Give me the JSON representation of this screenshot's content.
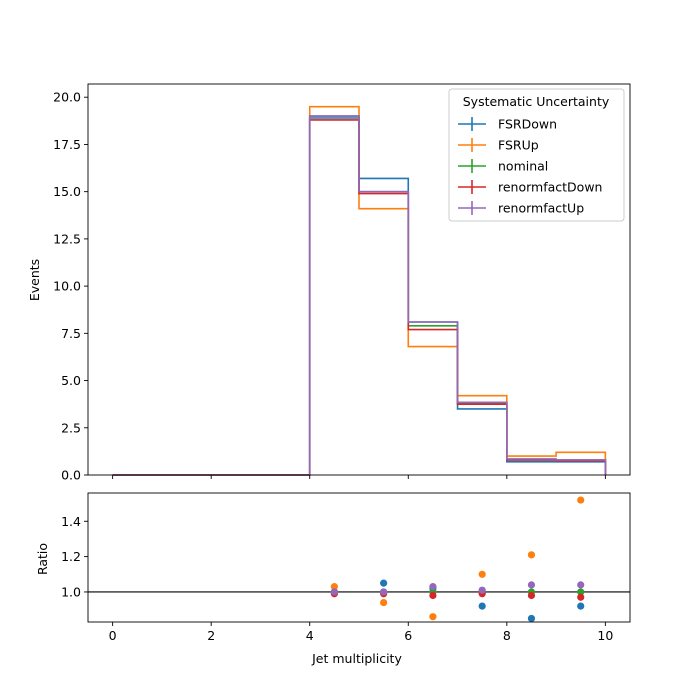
{
  "chart_data": [
    {
      "type": "step",
      "panel": "main",
      "ylabel": "Events",
      "xlim": [
        -0.5,
        10.5
      ],
      "ylim": [
        0,
        20.7
      ],
      "yticks": [
        0.0,
        2.5,
        5.0,
        7.5,
        10.0,
        12.5,
        15.0,
        17.5,
        20.0
      ],
      "ytick_labels": [
        "0.0",
        "2.5",
        "5.0",
        "7.5",
        "10.0",
        "12.5",
        "15.0",
        "17.5",
        "20.0"
      ],
      "bin_edges": [
        0,
        1,
        2,
        3,
        4,
        5,
        6,
        7,
        8,
        9,
        10
      ],
      "legend": {
        "title": "Systematic Uncertainty",
        "position": "top-right"
      },
      "series": [
        {
          "name": "FSRDown",
          "color": "#1f77b4",
          "values": [
            0,
            0,
            0,
            0,
            18.9,
            15.7,
            8.1,
            3.5,
            0.7,
            0.7
          ]
        },
        {
          "name": "FSRUp",
          "color": "#ff7f0e",
          "values": [
            0,
            0,
            0,
            0,
            19.5,
            14.1,
            6.8,
            4.2,
            1.0,
            1.2
          ]
        },
        {
          "name": "nominal",
          "color": "#2ca02c",
          "values": [
            0,
            0,
            0,
            0,
            19.0,
            15.0,
            7.9,
            3.8,
            0.8,
            0.8
          ]
        },
        {
          "name": "renormfactDown",
          "color": "#d62728",
          "values": [
            0,
            0,
            0,
            0,
            18.8,
            14.9,
            7.7,
            3.75,
            0.8,
            0.75
          ]
        },
        {
          "name": "renormfactUp",
          "color": "#9467bd",
          "values": [
            0,
            0,
            0,
            0,
            19.0,
            15.0,
            8.1,
            3.85,
            0.85,
            0.8
          ]
        }
      ]
    },
    {
      "type": "scatter",
      "panel": "ratio",
      "xlabel": "Jet multiplicity",
      "ylabel": "Ratio",
      "xlim": [
        -0.5,
        10.5
      ],
      "ylim": [
        0.83,
        1.56
      ],
      "xticks": [
        0,
        2,
        4,
        6,
        8,
        10
      ],
      "xtick_labels": [
        "0",
        "2",
        "4",
        "6",
        "8",
        "10"
      ],
      "yticks": [
        1.0,
        1.2,
        1.4
      ],
      "ytick_labels": [
        "1.0",
        "1.2",
        "1.4"
      ],
      "reference_line": 1.0,
      "x": [
        4.5,
        5.5,
        6.5,
        7.5,
        8.5,
        9.5
      ],
      "series": [
        {
          "name": "FSRDown",
          "color": "#1f77b4",
          "values": [
            1.0,
            1.05,
            1.02,
            0.92,
            0.85,
            0.92
          ]
        },
        {
          "name": "FSRUp",
          "color": "#ff7f0e",
          "values": [
            1.03,
            0.94,
            0.86,
            1.1,
            1.21,
            1.52
          ]
        },
        {
          "name": "nominal",
          "color": "#2ca02c",
          "values": [
            1.0,
            1.0,
            1.0,
            1.0,
            1.0,
            1.0
          ]
        },
        {
          "name": "renormfactDown",
          "color": "#d62728",
          "values": [
            0.99,
            0.99,
            0.98,
            0.99,
            0.98,
            0.97
          ]
        },
        {
          "name": "renormfactUp",
          "color": "#9467bd",
          "values": [
            1.0,
            1.0,
            1.03,
            1.01,
            1.04,
            1.04
          ]
        }
      ]
    }
  ]
}
